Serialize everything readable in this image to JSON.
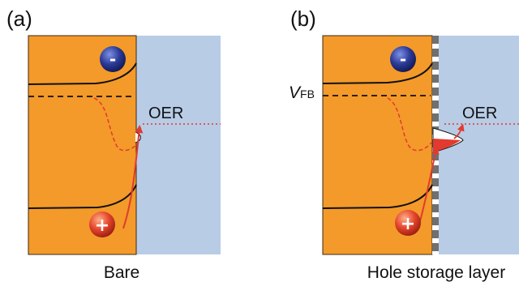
{
  "panels": {
    "a": {
      "label": "(a)",
      "process": "OER",
      "caption": "Bare"
    },
    "b": {
      "label": "(b)",
      "process": "OER",
      "caption": "Hole storage layer",
      "level_label": "V",
      "level_subscript": "FB"
    }
  },
  "charges": {
    "electron": "-",
    "hole": "+"
  },
  "colors": {
    "semiconductor": "#f39a2a",
    "electrolyte": "#b8cce6",
    "electron": "#2b3a98",
    "hole": "#e5452c",
    "arrow": "#e23a2e",
    "storage_layer": "#707070"
  }
}
